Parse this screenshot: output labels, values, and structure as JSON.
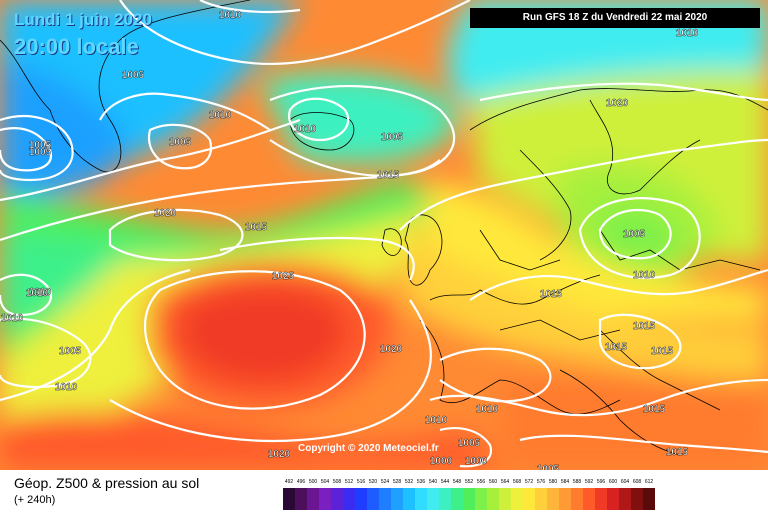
{
  "header": {
    "date": "Lundi 1 juin 2020",
    "time": "20:00 locale",
    "run": "Run GFS 18 Z du Vendredi 22 mai 2020"
  },
  "isobar_labels": [
    "1010",
    "1005",
    "1005",
    "1010",
    "1010",
    "1005",
    "1005",
    "1015",
    "1005",
    "1020",
    "1015",
    "1020",
    "1025",
    "1010",
    "1010",
    "1005",
    "1010",
    "1020",
    "1015",
    "1010",
    "1005",
    "1010",
    "1015",
    "1015",
    "1015",
    "1010",
    "1015",
    "1015",
    "1005",
    "1000",
    "1000",
    "1005",
    "1010",
    "1020",
    "1010"
  ],
  "copyright": "Copyright © 2020 Meteociel.fr",
  "legend": {
    "title": "Géop. Z500 & pression au sol",
    "subtitle": "(+ 240h)",
    "scale_values": [
      "492",
      "496",
      "500",
      "504",
      "508",
      "512",
      "516",
      "520",
      "524",
      "528",
      "532",
      "536",
      "540",
      "544",
      "548",
      "552",
      "556",
      "560",
      "564",
      "568",
      "572",
      "576",
      "580",
      "584",
      "588",
      "592",
      "596",
      "600",
      "604",
      "608",
      "612"
    ],
    "scale_colors": [
      "#2a0a35",
      "#4b0f5c",
      "#6a1591",
      "#7a1fc0",
      "#5b22d8",
      "#3a2cf0",
      "#1f3dff",
      "#1f5cff",
      "#1f7dff",
      "#1fa0ff",
      "#1fc0ff",
      "#30dcff",
      "#40ecf0",
      "#3ef0c0",
      "#3ef08a",
      "#50ee5a",
      "#7ef04a",
      "#a6f03c",
      "#cff03a",
      "#eef03c",
      "#ffe83a",
      "#ffd03a",
      "#ffb43a",
      "#ff9a34",
      "#ff7c2e",
      "#ff5a2a",
      "#f03a26",
      "#d82222",
      "#b01818",
      "#801010",
      "#5a0a0a"
    ]
  }
}
